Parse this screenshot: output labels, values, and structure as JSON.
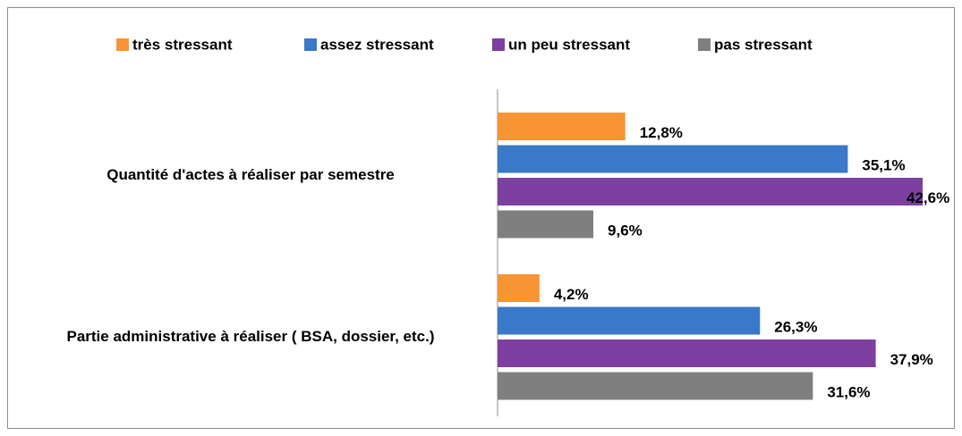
{
  "chart_data": {
    "type": "bar",
    "orientation": "horizontal",
    "categories": [
      "Quantité d'actes à réaliser par semestre",
      "Partie administrative à réaliser ( BSA, dossier, etc.)"
    ],
    "series": [
      {
        "name": "très stressant",
        "color": "#f79433",
        "values": [
          12.8,
          4.2
        ],
        "value_labels": [
          "12,8%",
          "4,2%"
        ]
      },
      {
        "name": "assez stressant",
        "color": "#3a78c9",
        "values": [
          35.1,
          26.3
        ],
        "value_labels": [
          "35,1%",
          "26,3%"
        ]
      },
      {
        "name": "un peu stressant",
        "color": "#7d3fa0",
        "values": [
          42.6,
          37.9
        ],
        "value_labels": [
          "42,6%",
          "37,9%"
        ]
      },
      {
        "name": "pas stressant",
        "color": "#7f7f7f",
        "values": [
          9.6,
          31.6
        ],
        "value_labels": [
          "9,6%",
          "31,6%"
        ]
      }
    ],
    "legend": "top"
  }
}
